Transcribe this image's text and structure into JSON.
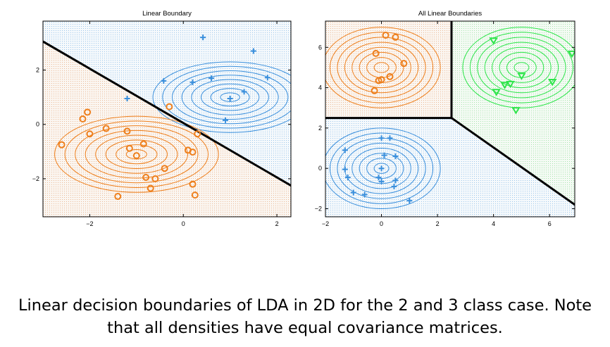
{
  "caption": {
    "line1": "Linear decision boundaries of LDA in 2D for the 2 and 3 class case. Note",
    "line2": "that all densities have equal covariance matrices."
  },
  "colors": {
    "blue": "#3a8fdc",
    "orange": "#ee7f1c",
    "green": "#2de54a",
    "boundary": "#000000",
    "blue_region": "#eaf2f8",
    "orange_region": "#f6ece3",
    "green_region": "#e9f6ea"
  },
  "chart_data": [
    {
      "type": "scatter",
      "title": "Linear Boundary",
      "xlabel": "",
      "ylabel": "",
      "xlim": [
        -3.0,
        2.3
      ],
      "ylim": [
        -3.4,
        3.8
      ],
      "xticks": [
        -2,
        0,
        2
      ],
      "yticks": [
        -2,
        0,
        2
      ],
      "tick_labels_x": [
        "−2",
        "0",
        "2"
      ],
      "tick_labels_y": [
        "−2",
        "0",
        "2"
      ],
      "boundary": [
        [
          -3.0,
          3.05
        ],
        [
          2.3,
          -2.25
        ]
      ],
      "series": [
        {
          "marker": "plus",
          "color": "blue",
          "center": [
            1.0,
            1.0
          ],
          "rx": 1.65,
          "ry": 1.3,
          "points": [
            [
              0.42,
              3.2
            ],
            [
              1.5,
              2.7
            ],
            [
              -0.42,
              1.6
            ],
            [
              0.2,
              1.55
            ],
            [
              0.6,
              1.7
            ],
            [
              1.8,
              1.72
            ],
            [
              1.3,
              1.2
            ],
            [
              -1.2,
              0.95
            ],
            [
              1.0,
              0.95
            ],
            [
              0.9,
              0.15
            ]
          ]
        },
        {
          "marker": "circle",
          "color": "orange",
          "center": [
            -1.0,
            -1.1
          ],
          "rx": 1.75,
          "ry": 1.4,
          "points": [
            [
              -2.05,
              0.45
            ],
            [
              -2.15,
              0.2
            ],
            [
              -2.0,
              -0.35
            ],
            [
              -1.65,
              -0.15
            ],
            [
              -1.2,
              -0.25
            ],
            [
              -0.3,
              0.65
            ],
            [
              0.3,
              -0.35
            ],
            [
              -2.6,
              -0.75
            ],
            [
              -1.15,
              -0.88
            ],
            [
              -0.85,
              -0.72
            ],
            [
              -1.0,
              -1.15
            ],
            [
              0.1,
              -0.95
            ],
            [
              0.2,
              -1.02
            ],
            [
              -0.4,
              -1.62
            ],
            [
              -0.8,
              -1.95
            ],
            [
              -0.6,
              -2.0
            ],
            [
              -0.7,
              -2.35
            ],
            [
              0.2,
              -2.2
            ],
            [
              0.25,
              -2.6
            ],
            [
              -1.4,
              -2.65
            ]
          ]
        }
      ]
    },
    {
      "type": "scatter",
      "title": "All Linear Boundaries",
      "xlabel": "",
      "ylabel": "",
      "xlim": [
        -2.0,
        6.9
      ],
      "ylim": [
        -2.4,
        7.3
      ],
      "xticks": [
        -2,
        0,
        2,
        4,
        6
      ],
      "yticks": [
        -2,
        0,
        2,
        4,
        6
      ],
      "tick_labels_x": [
        "−2",
        "0",
        "2",
        "4",
        "6"
      ],
      "tick_labels_y": [
        "−2",
        "0",
        "2",
        "4",
        "6"
      ],
      "boundaries": [
        [
          [
            -2.0,
            2.5
          ],
          [
            2.5,
            2.5
          ]
        ],
        [
          [
            2.5,
            2.5
          ],
          [
            2.5,
            7.3
          ]
        ],
        [
          [
            2.5,
            2.5
          ],
          [
            6.9,
            -1.8
          ]
        ]
      ],
      "series": [
        {
          "marker": "circle",
          "color": "orange",
          "center": [
            0.0,
            5.0
          ],
          "rx": 2.1,
          "ry": 2.0,
          "points": [
            [
              0.15,
              6.6
            ],
            [
              0.5,
              6.5
            ],
            [
              -0.2,
              5.7
            ],
            [
              0.8,
              5.2
            ],
            [
              0.3,
              4.55
            ],
            [
              0.0,
              4.4
            ],
            [
              -0.1,
              4.35
            ],
            [
              -0.25,
              3.85
            ]
          ]
        },
        {
          "marker": "triangle",
          "color": "green",
          "center": [
            5.0,
            5.0
          ],
          "rx": 2.1,
          "ry": 2.0,
          "points": [
            [
              4.0,
              6.35
            ],
            [
              6.8,
              5.7
            ],
            [
              5.0,
              4.6
            ],
            [
              4.6,
              4.2
            ],
            [
              4.4,
              4.15
            ],
            [
              4.1,
              3.8
            ],
            [
              6.1,
              4.3
            ],
            [
              4.8,
              2.9
            ]
          ]
        },
        {
          "marker": "plus",
          "color": "blue",
          "center": [
            0.0,
            0.0
          ],
          "rx": 2.1,
          "ry": 2.0,
          "points": [
            [
              0.0,
              1.5
            ],
            [
              0.3,
              1.5
            ],
            [
              -1.3,
              0.9
            ],
            [
              0.1,
              0.65
            ],
            [
              0.5,
              0.6
            ],
            [
              -1.3,
              -0.05
            ],
            [
              0.0,
              0.0
            ],
            [
              -1.2,
              -0.45
            ],
            [
              -0.1,
              -0.45
            ],
            [
              0.0,
              -0.65
            ],
            [
              0.5,
              -0.6
            ],
            [
              0.45,
              -0.9
            ],
            [
              -1.0,
              -1.2
            ],
            [
              -0.6,
              -1.3
            ],
            [
              1.0,
              -1.6
            ]
          ]
        }
      ]
    }
  ]
}
